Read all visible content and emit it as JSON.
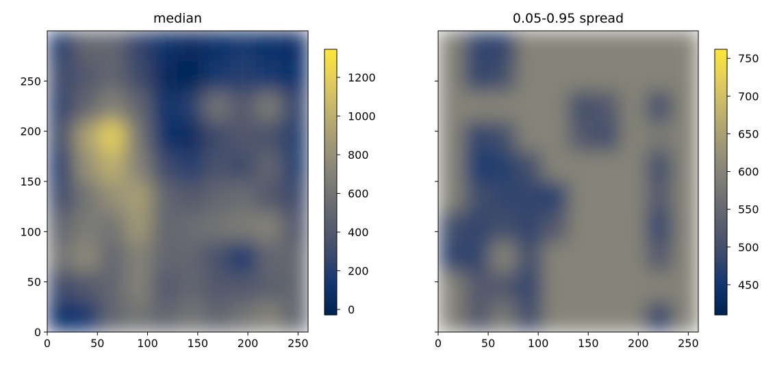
{
  "chart_data": [
    {
      "type": "heatmap",
      "title": "median",
      "xlim": [
        0,
        260
      ],
      "ylim": [
        0,
        300
      ],
      "xticks": [
        0,
        50,
        100,
        150,
        200,
        250
      ],
      "yticks": [
        0,
        50,
        100,
        150,
        200,
        250
      ],
      "clim": [
        -28,
        1345
      ],
      "cticks": [
        0,
        200,
        400,
        600,
        800,
        1000,
        1200
      ],
      "colormap": [
        "#00224e",
        "#123570",
        "#3b496c",
        "#575d6d",
        "#707173",
        "#8a8779",
        "#a69d75",
        "#c4b56c",
        "#e4cf5b",
        "#fee838"
      ],
      "values": [
        [
          200,
          500,
          500,
          250,
          100,
          50,
          100,
          150,
          100,
          80
        ],
        [
          300,
          400,
          500,
          300,
          50,
          0,
          150,
          200,
          150,
          100
        ],
        [
          250,
          500,
          700,
          500,
          100,
          200,
          600,
          400,
          650,
          250
        ],
        [
          300,
          900,
          1200,
          600,
          100,
          50,
          300,
          400,
          350,
          200
        ],
        [
          200,
          800,
          1000,
          700,
          300,
          200,
          350,
          300,
          500,
          200
        ],
        [
          300,
          600,
          800,
          900,
          500,
          400,
          500,
          550,
          400,
          300
        ],
        [
          500,
          650,
          600,
          850,
          500,
          550,
          600,
          650,
          700,
          400
        ],
        [
          600,
          750,
          500,
          700,
          500,
          500,
          350,
          150,
          500,
          500
        ],
        [
          300,
          400,
          500,
          700,
          400,
          500,
          400,
          400,
          450,
          500
        ],
        [
          100,
          150,
          500,
          600,
          500,
          600,
          500,
          600,
          700,
          500
        ]
      ]
    },
    {
      "type": "heatmap",
      "title": "0.05-0.95 spread",
      "xlim": [
        0,
        260
      ],
      "ylim": [
        0,
        300
      ],
      "xticks": [
        0,
        50,
        100,
        150,
        200,
        250
      ],
      "yticks": [
        0,
        50,
        100,
        150,
        200,
        250
      ],
      "clim": [
        410,
        762
      ],
      "cticks": [
        450,
        500,
        550,
        600,
        650,
        700,
        750
      ],
      "colormap": [
        "#00224e",
        "#123570",
        "#3b496c",
        "#575d6d",
        "#707173",
        "#8a8779",
        "#a69d75",
        "#c4b56c",
        "#e4cf5b",
        "#fee838"
      ],
      "values": [
        [
          600,
          480,
          480,
          600,
          600,
          600,
          600,
          600,
          600,
          600
        ],
        [
          600,
          480,
          500,
          600,
          600,
          600,
          600,
          600,
          600,
          600
        ],
        [
          600,
          600,
          600,
          600,
          600,
          500,
          520,
          600,
          500,
          600
        ],
        [
          600,
          480,
          500,
          600,
          600,
          520,
          500,
          600,
          580,
          600
        ],
        [
          600,
          460,
          470,
          500,
          600,
          600,
          600,
          600,
          500,
          600
        ],
        [
          600,
          500,
          480,
          480,
          470,
          600,
          600,
          600,
          520,
          600
        ],
        [
          500,
          480,
          500,
          480,
          520,
          600,
          600,
          600,
          480,
          600
        ],
        [
          480,
          480,
          600,
          500,
          600,
          600,
          600,
          600,
          520,
          600
        ],
        [
          600,
          520,
          520,
          480,
          600,
          600,
          600,
          600,
          600,
          600
        ],
        [
          600,
          520,
          580,
          500,
          600,
          600,
          600,
          600,
          480,
          600
        ]
      ]
    }
  ]
}
